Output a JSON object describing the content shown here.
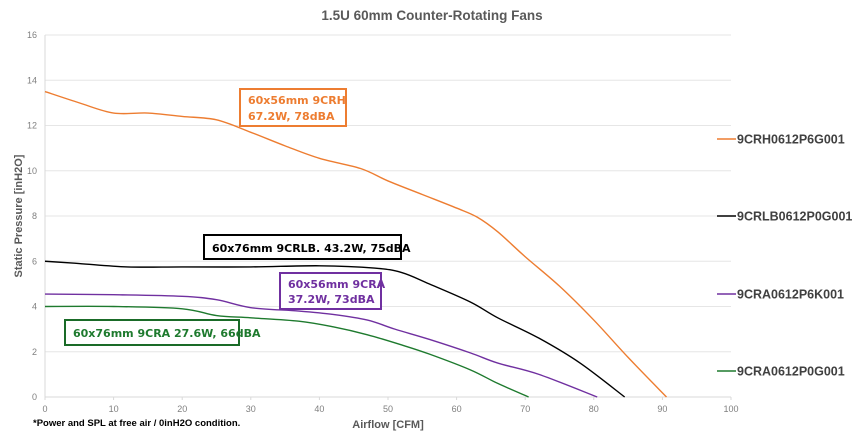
{
  "chart_data": {
    "type": "line",
    "title": "1.5U 60mm Counter-Rotating Fans",
    "xlabel": "Airflow [CFM]",
    "ylabel": "Static Pressure [inH2O]",
    "xlim": [
      0,
      100
    ],
    "ylim": [
      0,
      16
    ],
    "xticks": [
      0,
      10,
      20,
      30,
      40,
      50,
      60,
      70,
      80,
      90,
      100
    ],
    "yticks": [
      0,
      2,
      4,
      6,
      8,
      10,
      12,
      14,
      16
    ],
    "grid": "horizontal",
    "legend_position": "right",
    "footnote": "*Power and SPL at free air / 0inH2O condition.",
    "series": [
      {
        "name": "9CRH0612P6G001",
        "color": "#ED7D31",
        "annotation": [
          "60x56mm 9CRH",
          "67.2W, 78dBA"
        ],
        "x": [
          0,
          5,
          10,
          15,
          20,
          25,
          30,
          35,
          40,
          46,
          50,
          55,
          60,
          63,
          66,
          70,
          75,
          80,
          85,
          90.6
        ],
        "y": [
          13.5,
          13.0,
          12.55,
          12.55,
          12.4,
          12.25,
          11.7,
          11.1,
          10.55,
          10.1,
          9.55,
          8.95,
          8.35,
          7.95,
          7.3,
          6.2,
          4.9,
          3.4,
          1.75,
          0
        ]
      },
      {
        "name": "9CRLB0612P0G001",
        "color": "#000000",
        "annotation": [
          "60x76mm 9CRLB. 43.2W, 75dBA"
        ],
        "x": [
          0,
          5,
          12,
          20,
          30,
          40,
          48,
          52,
          56,
          62,
          66,
          72,
          78,
          84.5
        ],
        "y": [
          6.0,
          5.9,
          5.75,
          5.75,
          5.75,
          5.8,
          5.7,
          5.5,
          5.0,
          4.2,
          3.5,
          2.6,
          1.5,
          0
        ]
      },
      {
        "name": "9CRA0612P6K001",
        "color": "#7030A0",
        "annotation": [
          "60x56mm 9CRA",
          "37.2W, 73dBA"
        ],
        "x": [
          0,
          10,
          20,
          25,
          30,
          37,
          42,
          47,
          51,
          56,
          62,
          66,
          72,
          80.5
        ],
        "y": [
          4.55,
          4.52,
          4.45,
          4.3,
          3.95,
          3.8,
          3.65,
          3.4,
          3.0,
          2.55,
          1.95,
          1.5,
          1.0,
          0
        ]
      },
      {
        "name": "9CRA0612P0G001",
        "color": "#1E7A2E",
        "annotation": [
          "60x76mm 9CRA 27.6W, 66dBA"
        ],
        "x": [
          0,
          10,
          20,
          25,
          30,
          37,
          42,
          47,
          52,
          56,
          62,
          66,
          70.5
        ],
        "y": [
          4.0,
          4.0,
          3.9,
          3.6,
          3.5,
          3.35,
          3.1,
          2.75,
          2.3,
          1.9,
          1.2,
          0.6,
          0
        ]
      }
    ]
  },
  "footnote": "*Power and SPL at free air / 0inH2O condition."
}
